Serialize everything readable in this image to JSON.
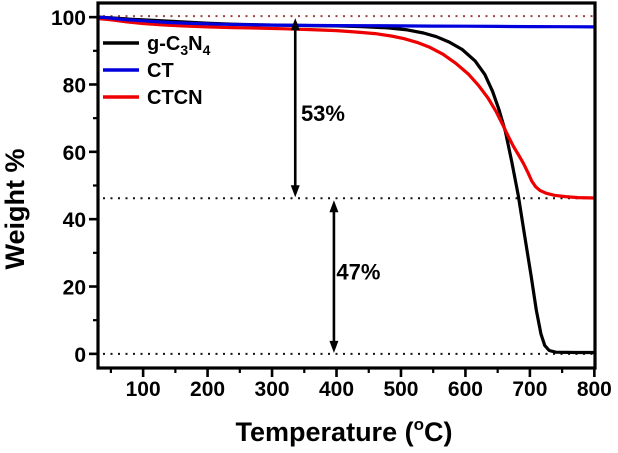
{
  "figure": {
    "background": "#ffffff",
    "axis_color": "#000000"
  },
  "chart_data": {
    "type": "line",
    "title": "",
    "xlabel": "Temperature (°C)",
    "xlabel_parts": [
      {
        "t": "Temperature ("
      },
      {
        "t": "o",
        "sup": true
      },
      {
        "t": "C)"
      }
    ],
    "ylabel": "Weight %",
    "xlim": [
      30,
      801
    ],
    "ylim": [
      -4.2,
      104.2
    ],
    "x_ticks": [
      100,
      200,
      300,
      400,
      500,
      600,
      700,
      800
    ],
    "x_minor_step": 50,
    "y_ticks": [
      0,
      20,
      40,
      60,
      80,
      100
    ],
    "y_minor_step": 10,
    "grid": false,
    "legend_position": "top-left",
    "series": [
      {
        "name": "g-C3N4",
        "label_parts": [
          {
            "t": "g-C"
          },
          {
            "t": "3",
            "sub": true
          },
          {
            "t": "N"
          },
          {
            "t": "4",
            "sub": true
          }
        ],
        "color": "#000000",
        "points": [
          [
            30,
            100
          ],
          [
            50,
            99.8
          ],
          [
            80,
            99.4
          ],
          [
            120,
            99.0
          ],
          [
            160,
            98.6
          ],
          [
            200,
            98.2
          ],
          [
            240,
            97.9
          ],
          [
            280,
            97.7
          ],
          [
            320,
            97.6
          ],
          [
            360,
            97.5
          ],
          [
            400,
            97.4
          ],
          [
            440,
            97.2
          ],
          [
            480,
            96.8
          ],
          [
            510,
            96.2
          ],
          [
            535,
            95.3
          ],
          [
            555,
            94.2
          ],
          [
            575,
            92.6
          ],
          [
            595,
            90.4
          ],
          [
            615,
            87.0
          ],
          [
            630,
            83.0
          ],
          [
            642,
            78.0
          ],
          [
            652,
            72.5
          ],
          [
            662,
            66.0
          ],
          [
            672,
            57.0
          ],
          [
            682,
            47.0
          ],
          [
            692,
            35.0
          ],
          [
            702,
            23.0
          ],
          [
            710,
            13.0
          ],
          [
            717,
            6.0
          ],
          [
            723,
            2.5
          ],
          [
            730,
            1.0
          ],
          [
            740,
            0.5
          ],
          [
            770,
            0.4
          ],
          [
            800,
            0.4
          ]
        ]
      },
      {
        "name": "CT",
        "label_parts": [
          {
            "t": "CT"
          }
        ],
        "color": "#0000dd",
        "points": [
          [
            30,
            100
          ],
          [
            45,
            99.8
          ],
          [
            70,
            99.3
          ],
          [
            100,
            98.9
          ],
          [
            140,
            98.4
          ],
          [
            180,
            98.1
          ],
          [
            220,
            97.9
          ],
          [
            260,
            97.75
          ],
          [
            300,
            97.65
          ],
          [
            350,
            97.55
          ],
          [
            400,
            97.5
          ],
          [
            450,
            97.45
          ],
          [
            500,
            97.4
          ],
          [
            550,
            97.35
          ],
          [
            600,
            97.3
          ],
          [
            650,
            97.25
          ],
          [
            700,
            97.2
          ],
          [
            750,
            97.15
          ],
          [
            800,
            97.1
          ]
        ]
      },
      {
        "name": "CTCN",
        "label_parts": [
          {
            "t": "CTCN"
          }
        ],
        "color": "#ee0000",
        "points": [
          [
            30,
            99.6
          ],
          [
            50,
            99.2
          ],
          [
            75,
            98.6
          ],
          [
            100,
            98.1
          ],
          [
            130,
            97.7
          ],
          [
            160,
            97.4
          ],
          [
            200,
            97.1
          ],
          [
            240,
            96.9
          ],
          [
            280,
            96.75
          ],
          [
            320,
            96.55
          ],
          [
            360,
            96.3
          ],
          [
            400,
            96.0
          ],
          [
            430,
            95.6
          ],
          [
            460,
            95.1
          ],
          [
            485,
            94.4
          ],
          [
            505,
            93.6
          ],
          [
            525,
            92.5
          ],
          [
            545,
            91.0
          ],
          [
            565,
            89.0
          ],
          [
            585,
            86.3
          ],
          [
            605,
            83.0
          ],
          [
            620,
            79.8
          ],
          [
            635,
            76.0
          ],
          [
            648,
            71.8
          ],
          [
            658,
            68.0
          ],
          [
            666,
            64.8
          ],
          [
            674,
            61.8
          ],
          [
            682,
            59.2
          ],
          [
            690,
            56.6
          ],
          [
            697,
            53.8
          ],
          [
            703,
            51.3
          ],
          [
            709,
            49.6
          ],
          [
            716,
            48.5
          ],
          [
            725,
            47.7
          ],
          [
            738,
            47.1
          ],
          [
            755,
            46.7
          ],
          [
            775,
            46.4
          ],
          [
            800,
            46.3
          ]
        ]
      }
    ],
    "reference_lines": [
      {
        "y": 100.3,
        "color": "#a04040",
        "style": "dotted"
      },
      {
        "y": 46.2,
        "color": "#111111",
        "style": "dotted"
      },
      {
        "y": 0,
        "color": "#111111",
        "style": "dotted"
      }
    ],
    "annotations": [
      {
        "type": "double-arrow",
        "x": 336,
        "y_from": 100.3,
        "y_to": 46.2,
        "label": "53%",
        "label_x": 379,
        "label_y": 71.5,
        "color": "#000000"
      },
      {
        "type": "double-arrow",
        "x": 396,
        "y_from": 46.2,
        "y_to": 0,
        "label": "47%",
        "label_x": 434,
        "label_y": 24.5,
        "color": "#000000"
      }
    ]
  }
}
